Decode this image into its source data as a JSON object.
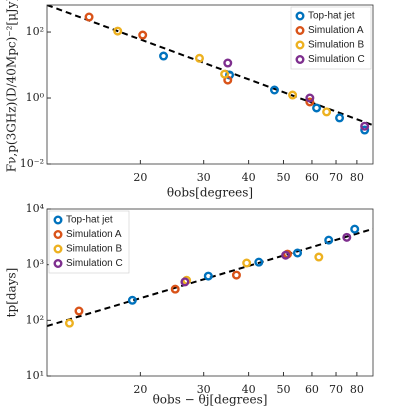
{
  "chart_data": [
    {
      "type": "scatter",
      "x_label": "θobs[degrees]",
      "y_label": "Fν,p(3GHz)(D/40Mpc)⁻²[μJy]",
      "log_x": true,
      "log_y": true,
      "legend": "upper right",
      "xlim": [
        11,
        88.7
      ],
      "ylim": [
        0.01,
        660
      ],
      "xticks": [
        20,
        30,
        40,
        50,
        60,
        70,
        80
      ],
      "yticks": [
        {
          "value": 0.01,
          "label": "10⁻²"
        },
        {
          "value": 1,
          "label": "10⁰"
        },
        {
          "value": 100,
          "label": "10²"
        }
      ],
      "fit": {
        "x": [
          11,
          88.7
        ],
        "values": [
          660,
          0.15
        ]
      },
      "series": [
        {
          "name": "Top-hat jet",
          "color": "#0072BD",
          "x": [
            23.2,
            35.4,
            47.2,
            61.8,
            71.6,
            84.1
          ],
          "values": [
            18.7,
            5.0,
            1.75,
            0.5,
            0.25,
            0.107
          ]
        },
        {
          "name": "Simulation A",
          "color": "#D95319",
          "x": [
            14.4,
            20.3,
            35,
            59.2
          ],
          "values": [
            285,
            81,
            3.5,
            0.76
          ]
        },
        {
          "name": "Simulation B",
          "color": "#EDB120",
          "x": [
            17.3,
            29.2,
            34.3,
            53,
            65.9
          ],
          "values": [
            107,
            16,
            5.3,
            1.23,
            0.38
          ]
        },
        {
          "name": "Simulation C",
          "color": "#7E2F8E",
          "x": [
            35,
            59.2,
            84.1
          ],
          "values": [
            11.5,
            1.0,
            0.14
          ]
        }
      ]
    },
    {
      "type": "scatter",
      "x_label": "θobs − θj[degrees]",
      "y_label": "tp[days]",
      "log_x": true,
      "log_y": true,
      "legend": "upper left",
      "xlim": [
        11,
        88.7
      ],
      "ylim": [
        10,
        10000
      ],
      "xticks": [
        20,
        30,
        40,
        50,
        60,
        70,
        80
      ],
      "yticks": [
        {
          "value": 10,
          "label": "10¹"
        },
        {
          "value": 100,
          "label": "10²"
        },
        {
          "value": 1000,
          "label": "10³"
        },
        {
          "value": 10000,
          "label": "10⁴"
        }
      ],
      "fit": {
        "x": [
          11,
          88.7
        ],
        "values": [
          79,
          4400
        ]
      },
      "series": [
        {
          "name": "Top-hat jet",
          "color": "#0072BD",
          "x": [
            19.0,
            30.9,
            42.7,
            54.7,
            66.8,
            78.9
          ],
          "values": [
            229,
            624,
            1110,
            1620,
            2760,
            4350
          ]
        },
        {
          "name": "Simulation A",
          "color": "#D95319",
          "x": [
            13.5,
            25.0,
            37.0,
            51.3
          ],
          "values": [
            147,
            363,
            650,
            1550
          ]
        },
        {
          "name": "Simulation B",
          "color": "#EDB120",
          "x": [
            12.7,
            26.9,
            39.5,
            62.7
          ],
          "values": [
            89,
            525,
            1070,
            1370
          ]
        },
        {
          "name": "Simulation C",
          "color": "#7E2F8E",
          "x": [
            26.6,
            50.7,
            75
          ],
          "values": [
            490,
            1480,
            3100
          ]
        }
      ]
    }
  ]
}
